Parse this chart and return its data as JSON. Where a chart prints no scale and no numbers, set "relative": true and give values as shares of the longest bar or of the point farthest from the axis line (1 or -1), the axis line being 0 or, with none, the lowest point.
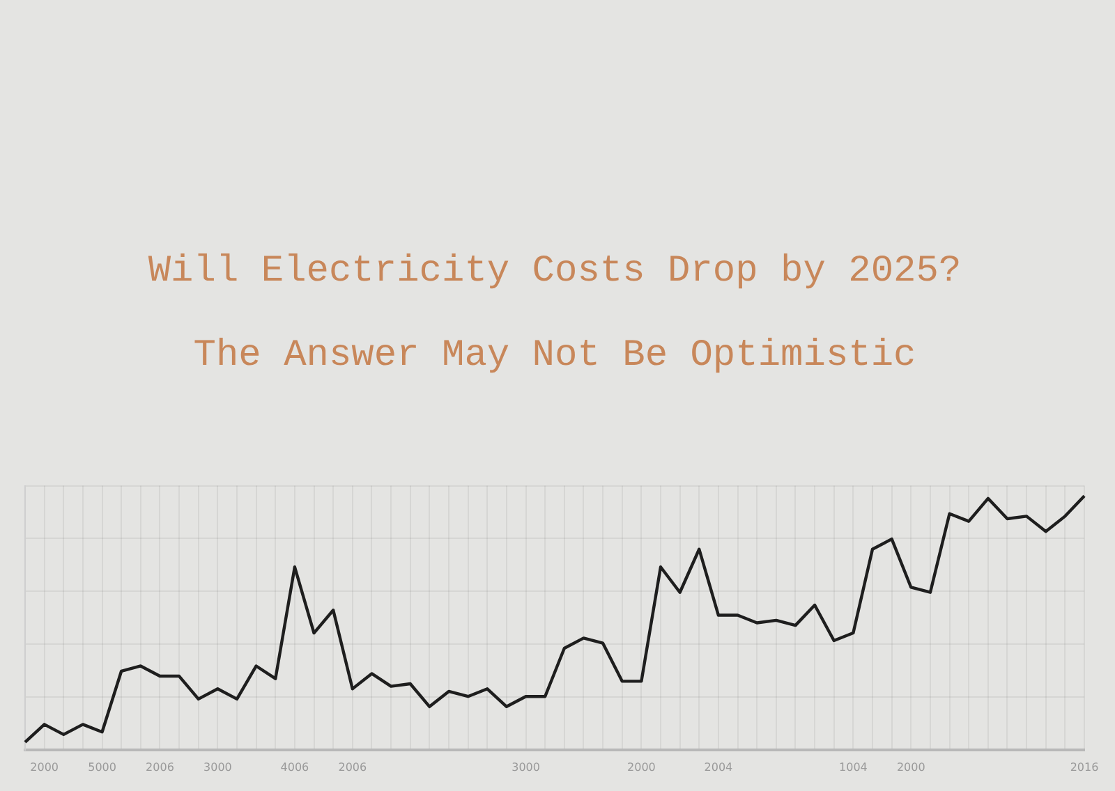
{
  "chart_data": {
    "type": "line",
    "title": "Will Electricity Costs Drop by 2025?",
    "subtitle": "The Answer May Not Be Optimistic",
    "relative": true,
    "grid": true,
    "legend": false,
    "marker": "none",
    "line_style": "solid",
    "categories": [
      null,
      "2000",
      null,
      null,
      "5000",
      null,
      null,
      "2006",
      null,
      null,
      "3000",
      null,
      null,
      null,
      "4006",
      null,
      null,
      "2006",
      null,
      null,
      null,
      null,
      null,
      null,
      null,
      null,
      "3000",
      null,
      null,
      null,
      null,
      null,
      "2000",
      null,
      null,
      null,
      "2004",
      null,
      null,
      null,
      null,
      null,
      null,
      "1004",
      null,
      null,
      "2000",
      null,
      null,
      null,
      null,
      null,
      null,
      null,
      null,
      "2016"
    ],
    "series": [
      {
        "color": "#1e1e1e",
        "values": [
          0.03,
          0.1,
          0.06,
          0.1,
          0.07,
          0.31,
          0.33,
          0.29,
          0.29,
          0.2,
          0.24,
          0.2,
          0.33,
          0.28,
          0.72,
          0.46,
          0.55,
          0.24,
          0.3,
          0.25,
          0.26,
          0.17,
          0.23,
          0.21,
          0.24,
          0.17,
          0.21,
          0.21,
          0.4,
          0.44,
          0.42,
          0.27,
          0.27,
          0.72,
          0.62,
          0.79,
          0.53,
          0.53,
          0.5,
          0.51,
          0.49,
          0.57,
          0.43,
          0.46,
          0.79,
          0.83,
          0.64,
          0.62,
          0.93,
          0.9,
          0.99,
          0.91,
          0.92,
          0.86,
          0.92,
          1
        ]
      }
    ]
  }
}
